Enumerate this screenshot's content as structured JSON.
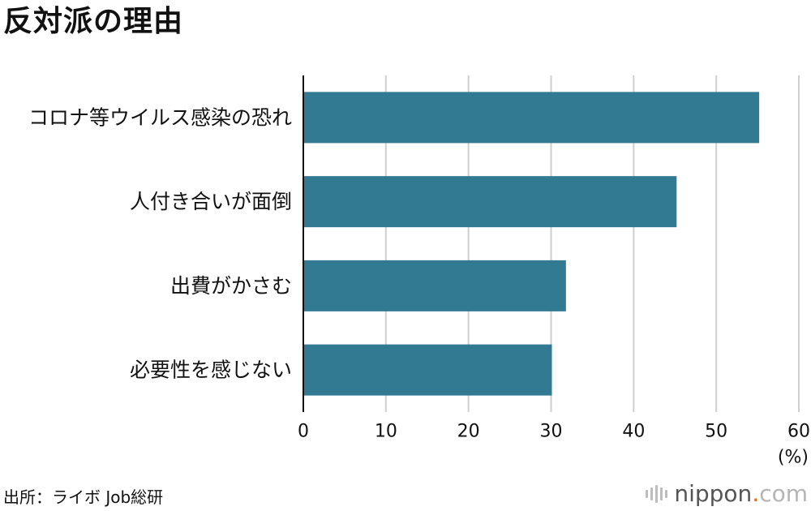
{
  "chart_data": {
    "type": "bar",
    "orientation": "horizontal",
    "title": "反対派の理由",
    "categories": [
      "コロナ等ウイルス感染の恐れ",
      "人付き合いが面倒",
      "出費がかさむ",
      "必要性を感じない"
    ],
    "values": [
      55.2,
      45.2,
      31.8,
      30.1
    ],
    "xticks": [
      "0",
      "10",
      "20",
      "30",
      "40",
      "50",
      "60"
    ],
    "xlim": [
      0,
      60
    ],
    "unit": "(%)",
    "grid": true,
    "colors": {
      "bar": "#327a92",
      "grid": "#cfcfcf",
      "axis": "#111111"
    }
  },
  "footer": {
    "source": "出所：ライボ Job総研",
    "brand_name": "nippon",
    "brand_dot": ".",
    "brand_suffix": "com"
  }
}
